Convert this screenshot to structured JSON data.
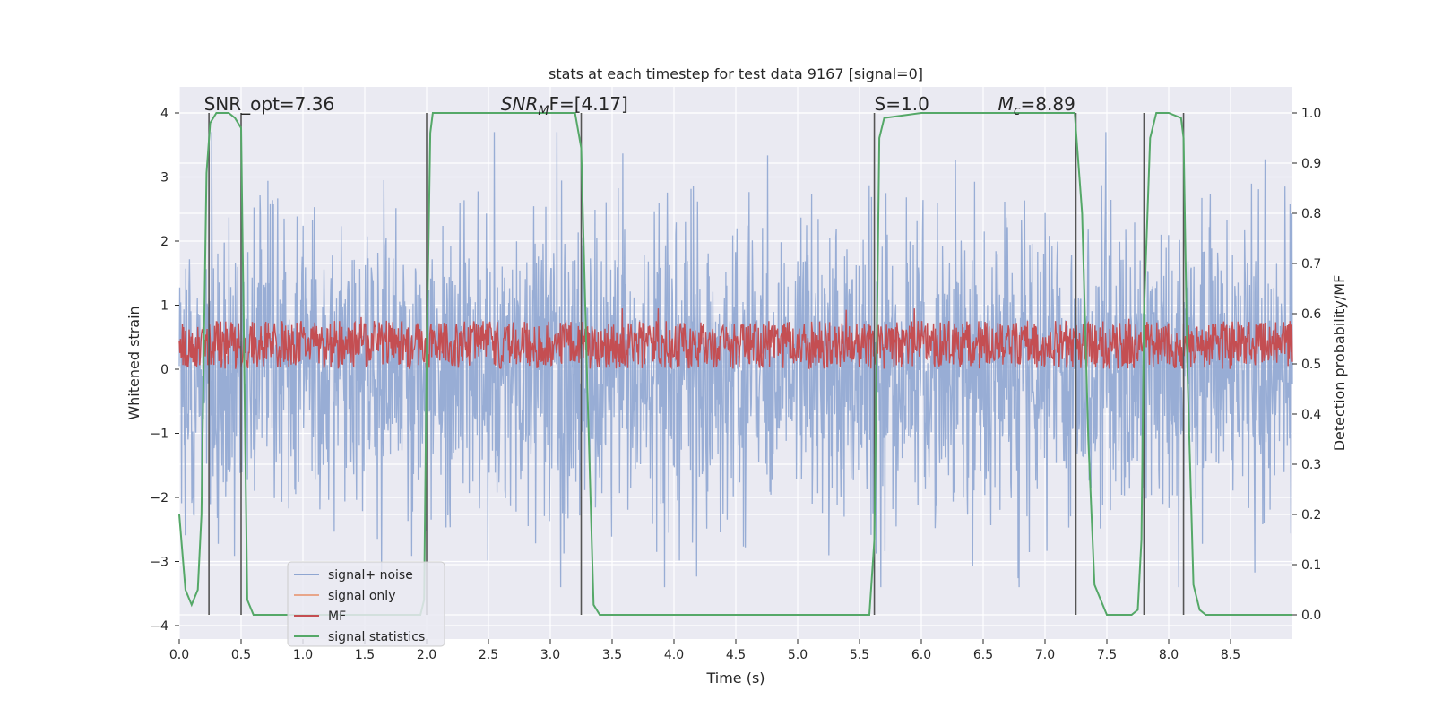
{
  "chart_data": {
    "type": "line",
    "title": "stats at each timestep for test data 9167 [signal=0]",
    "xlabel": "Time (s)",
    "ylabel_left": "Whitened strain",
    "ylabel_right": "Detection probability/MF",
    "xlim": [
      0.0,
      9.0
    ],
    "ylim_left": [
      -4.3,
      4.4
    ],
    "ylim_right": [
      -0.05,
      1.04
    ],
    "x_ticks": [
      "0.0",
      "0.5",
      "1.0",
      "1.5",
      "2.0",
      "2.5",
      "3.0",
      "3.5",
      "4.0",
      "4.5",
      "5.0",
      "5.5",
      "6.0",
      "6.5",
      "7.0",
      "7.5",
      "8.0",
      "8.5"
    ],
    "y_ticks_left": [
      "4",
      "3",
      "2",
      "1",
      "0",
      "−1",
      "−2",
      "−3",
      "−4"
    ],
    "y_ticks_right": [
      "1.0",
      "0.9",
      "0.8",
      "0.7",
      "0.6",
      "0.5",
      "0.4",
      "0.3",
      "0.2",
      "0.1",
      "0.0"
    ],
    "annotations": [
      {
        "text": "SNR_opt=7.36",
        "x": 0.2
      },
      {
        "text": "SNR",
        "sub": "M",
        "rest": "F=[4.17]",
        "x": 2.6
      },
      {
        "text": "S=1.0",
        "x": 5.62
      },
      {
        "text": "M",
        "sub": "c",
        "rest": "=8.89",
        "x": 6.62
      }
    ],
    "legend": {
      "location": "lower-left",
      "entries": [
        {
          "label": "signal+ noise",
          "color": "#8fa6d1"
        },
        {
          "label": "signal only",
          "color": "#e8a68a"
        },
        {
          "label": "MF",
          "color": "#c44e52"
        },
        {
          "label": "signal statistics",
          "color": "#55a868"
        }
      ]
    },
    "vertical_markers": [
      0.24,
      0.5,
      2.0,
      3.25,
      5.62,
      7.25,
      7.8,
      8.12
    ],
    "series": [
      {
        "name": "signal+ noise",
        "color": "#8fa6d1",
        "axis": "left",
        "note": "dense white noise, envelope approx -3.4..3.7"
      },
      {
        "name": "MF",
        "color": "#c44e52",
        "axis": "left",
        "note": "dense band approx 0.0..0.9"
      },
      {
        "name": "signal statistics",
        "color": "#55a868",
        "axis": "right",
        "x": [
          0.0,
          0.05,
          0.1,
          0.15,
          0.18,
          0.2,
          0.22,
          0.25,
          0.3,
          0.4,
          0.45,
          0.5,
          0.55,
          0.6,
          0.8,
          1.0,
          1.5,
          1.95,
          1.98,
          2.0,
          2.03,
          2.05,
          2.1,
          2.5,
          3.0,
          3.2,
          3.25,
          3.3,
          3.35,
          3.4,
          4.0,
          5.0,
          5.5,
          5.58,
          5.62,
          5.66,
          5.7,
          6.0,
          7.0,
          7.24,
          7.3,
          7.35,
          7.4,
          7.5,
          7.7,
          7.75,
          7.78,
          7.8,
          7.85,
          7.9,
          8.0,
          8.1,
          8.12,
          8.15,
          8.2,
          8.25,
          8.3,
          8.4,
          8.6,
          8.8,
          9.0
        ],
        "y": [
          0.2,
          0.05,
          0.02,
          0.05,
          0.2,
          0.55,
          0.88,
          0.98,
          1.0,
          1.0,
          0.99,
          0.97,
          0.03,
          0.0,
          0.0,
          0.0,
          0.0,
          0.0,
          0.03,
          0.5,
          0.96,
          1.0,
          1.0,
          1.0,
          1.0,
          1.0,
          0.93,
          0.45,
          0.02,
          0.0,
          0.0,
          0.0,
          0.0,
          0.0,
          0.15,
          0.95,
          0.99,
          1.0,
          1.0,
          1.0,
          0.8,
          0.35,
          0.06,
          0.0,
          0.0,
          0.01,
          0.15,
          0.6,
          0.95,
          1.0,
          1.0,
          0.99,
          0.95,
          0.5,
          0.06,
          0.01,
          0.0,
          0.0,
          0.0,
          0.0,
          0.0
        ]
      }
    ]
  }
}
